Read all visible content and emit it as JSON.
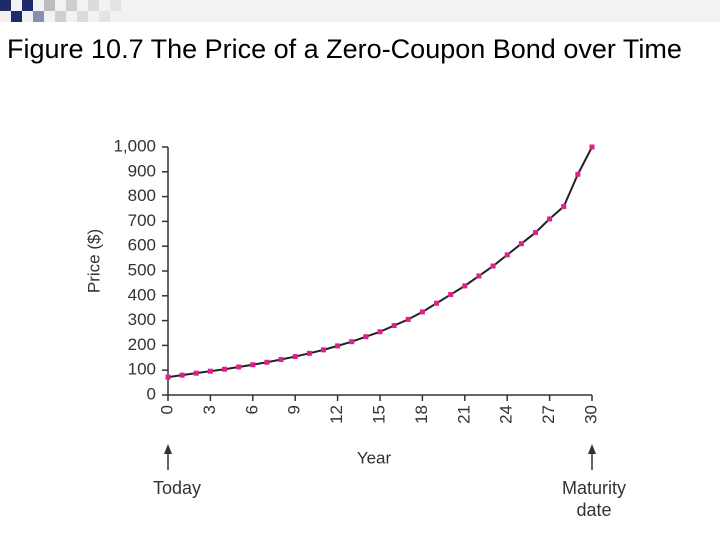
{
  "chart_data": {
    "type": "line",
    "title": "Figure 10.7 The Price of a Zero-Coupon Bond over Time",
    "x_label": "Year",
    "y_label": "Price ($)",
    "x": [
      0,
      1,
      2,
      3,
      4,
      5,
      6,
      7,
      8,
      9,
      10,
      11,
      12,
      13,
      14,
      15,
      16,
      17,
      18,
      19,
      20,
      21,
      22,
      23,
      24,
      25,
      26,
      27,
      28,
      29,
      30
    ],
    "series": [
      {
        "name": "Price",
        "color": "#e0208a",
        "values": [
          72,
          80,
          88,
          96,
          104,
          113,
          122,
          132,
          143,
          155,
          168,
          182,
          198,
          215,
          235,
          255,
          280,
          305,
          335,
          370,
          405,
          440,
          480,
          520,
          565,
          610,
          655,
          710,
          760,
          890,
          1000
        ]
      }
    ],
    "xlim": [
      0,
      30
    ],
    "xticks": [
      0,
      3,
      6,
      9,
      12,
      15,
      18,
      21,
      24,
      27,
      30
    ],
    "ylim": [
      0,
      1000
    ],
    "yticks": [
      0,
      100,
      200,
      300,
      400,
      500,
      600,
      700,
      800,
      900,
      {
        "value": 1000,
        "label": "1,000"
      }
    ],
    "annotations": [
      "Today",
      "Maturity date"
    ]
  }
}
